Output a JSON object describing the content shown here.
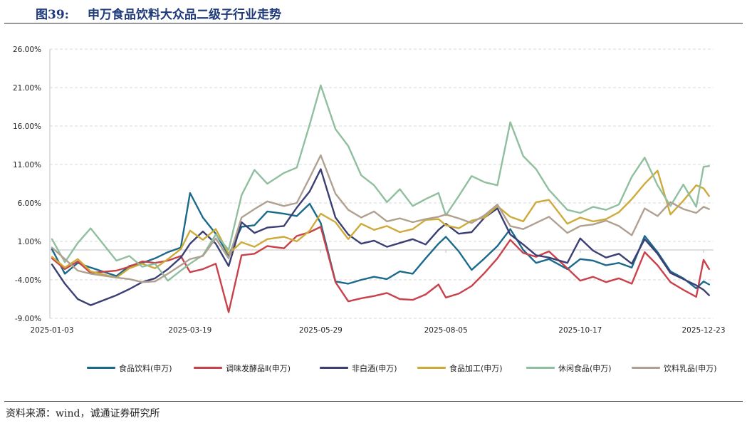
{
  "figure": {
    "number": "图39:",
    "title": "申万食品饮料大众品二级子行业走势"
  },
  "source": "资料来源：wind，诚通证券研究所",
  "chart_data": {
    "type": "line",
    "title": "",
    "xlabel": "",
    "ylabel": "",
    "ylim": [
      -9,
      26
    ],
    "yticks": [
      "-9.00%",
      "-4.00%",
      "1.00%",
      "6.00%",
      "11.00%",
      "16.00%",
      "21.00%",
      "26.00%"
    ],
    "yticks_values": [
      -9,
      -4,
      1,
      6,
      11,
      16,
      21,
      26
    ],
    "xticks": [
      "2025-01-03",
      "2025-03-19",
      "2025-05-29",
      "2025-08-05",
      "2025-10-17",
      "2025-12-23"
    ],
    "xticks_dates": [
      "2025-01-03",
      "2025-03-19",
      "2025-05-29",
      "2025-08-05",
      "2025-10-17",
      "2025-12-23"
    ],
    "grid": "horizontal dashed",
    "legend_position": "bottom",
    "x": [
      "2025-01-03",
      "2025-01-10",
      "2025-01-17",
      "2025-01-24",
      "2025-02-07",
      "2025-02-14",
      "2025-02-21",
      "2025-02-28",
      "2025-03-07",
      "2025-03-14",
      "2025-03-19",
      "2025-03-26",
      "2025-04-02",
      "2025-04-09",
      "2025-04-16",
      "2025-04-23",
      "2025-04-30",
      "2025-05-09",
      "2025-05-16",
      "2025-05-23",
      "2025-05-29",
      "2025-06-06",
      "2025-06-13",
      "2025-06-20",
      "2025-06-27",
      "2025-07-04",
      "2025-07-11",
      "2025-07-18",
      "2025-07-25",
      "2025-08-01",
      "2025-08-05",
      "2025-08-12",
      "2025-08-19",
      "2025-08-26",
      "2025-09-02",
      "2025-09-09",
      "2025-09-16",
      "2025-09-23",
      "2025-09-30",
      "2025-10-10",
      "2025-10-17",
      "2025-10-24",
      "2025-10-31",
      "2025-11-07",
      "2025-11-14",
      "2025-11-21",
      "2025-11-28",
      "2025-12-05",
      "2025-12-12",
      "2025-12-19",
      "2025-12-23",
      "2025-12-26"
    ],
    "series": [
      {
        "name": "食品饮料(申万)",
        "color": "#1b6a8c",
        "values": [
          0,
          -3.2,
          -1.8,
          -2.4,
          -3.5,
          -2.2,
          -1.8,
          -1.2,
          -0.4,
          0.2,
          7.3,
          4.1,
          2.0,
          -0.8,
          2.9,
          3.1,
          4.9,
          4.6,
          4.3,
          5.9,
          3.4,
          -4.2,
          -4.5,
          -4.0,
          -3.6,
          -3.9,
          -2.9,
          -3.2,
          -1.2,
          0.7,
          1.6,
          -0.3,
          -2.7,
          -1.2,
          0.4,
          2.6,
          -0.1,
          -1.8,
          -1.3,
          -2.6,
          -1.3,
          -1.5,
          -2.1,
          -1.8,
          -2.4,
          1.7,
          -0.4,
          -2.9,
          -3.8,
          -5.1,
          -4.2,
          -4.6
        ]
      },
      {
        "name": "调味发酵品Ⅱ(申万)",
        "color": "#c9414a",
        "values": [
          -1.2,
          -2.6,
          -1.6,
          -3.1,
          -2.8,
          -2.3,
          -1.6,
          -1.8,
          -1.5,
          -0.9,
          -3.0,
          -2.6,
          -1.9,
          -8.2,
          -0.8,
          -0.6,
          0.4,
          0.1,
          1.7,
          2.2,
          2.9,
          -4.3,
          -6.8,
          -6.4,
          -6.1,
          -5.7,
          -6.5,
          -6.6,
          -5.9,
          -4.6,
          -6.3,
          -5.8,
          -4.8,
          -3.1,
          -1.2,
          1.2,
          -0.5,
          -1.0,
          -0.3,
          -2.5,
          -4.1,
          -3.6,
          -4.3,
          -3.8,
          -4.5,
          -0.4,
          -2.1,
          -4.3,
          -5.3,
          -6.2,
          -1.4,
          -2.6
        ]
      },
      {
        "name": "非白酒(申万)",
        "color": "#3b3f73",
        "values": [
          -2.0,
          -4.5,
          -6.5,
          -7.3,
          -6.0,
          -5.2,
          -4.3,
          -3.8,
          -2.6,
          -1.1,
          0.7,
          2.3,
          0.7,
          -2.2,
          3.5,
          2.1,
          2.8,
          3.0,
          5.4,
          7.5,
          10.4,
          4.1,
          1.9,
          0.7,
          1.1,
          0.3,
          0.8,
          1.3,
          0.6,
          2.5,
          3.3,
          2.0,
          2.2,
          4.1,
          5.3,
          1.9,
          0.6,
          -0.8,
          -1.1,
          -1.8,
          1.4,
          -0.2,
          -1.1,
          -0.6,
          -1.9,
          1.3,
          -0.6,
          -3.1,
          -3.9,
          -4.7,
          -5.3,
          -6.0
        ]
      },
      {
        "name": "食品加工(申万)",
        "color": "#ceaa39",
        "values": [
          -1.0,
          -2.4,
          -1.3,
          -2.9,
          -3.7,
          -2.5,
          -1.9,
          -2.5,
          -1.3,
          0.0,
          2.4,
          1.2,
          2.6,
          -0.6,
          0.9,
          0.3,
          1.3,
          1.6,
          1.0,
          2.4,
          4.6,
          3.5,
          1.3,
          3.3,
          2.5,
          3.0,
          2.2,
          2.6,
          3.8,
          3.9,
          3.1,
          2.7,
          3.7,
          4.1,
          5.6,
          4.2,
          3.6,
          6.1,
          6.4,
          3.3,
          4.1,
          3.6,
          3.9,
          4.8,
          6.5,
          8.5,
          10.2,
          4.5,
          6.3,
          8.3,
          7.9,
          6.9
        ]
      },
      {
        "name": "休闲食品(申万)",
        "color": "#8fbf9e",
        "values": [
          1.3,
          -1.7,
          0.8,
          2.7,
          -1.5,
          -0.9,
          -2.3,
          -1.9,
          -4.1,
          -2.8,
          -1.9,
          -0.8,
          1.9,
          -0.1,
          7.0,
          10.3,
          8.5,
          9.9,
          10.6,
          16.2,
          21.3,
          15.6,
          13.4,
          9.6,
          8.3,
          6.1,
          7.8,
          5.6,
          6.5,
          7.3,
          4.4,
          6.9,
          9.5,
          8.7,
          8.3,
          16.5,
          12.1,
          10.4,
          7.7,
          5.1,
          4.7,
          5.5,
          5.1,
          5.8,
          9.4,
          11.9,
          8.3,
          5.6,
          8.4,
          5.5,
          10.7,
          10.8
        ]
      },
      {
        "name": "饮料乳品(申万)",
        "color": "#b0a090",
        "values": [
          0.2,
          -1.3,
          -2.8,
          -3.2,
          -3.7,
          -3.9,
          -4.3,
          -4.2,
          -3.2,
          -2.1,
          -1.3,
          -0.9,
          1.4,
          -1.2,
          4.1,
          5.2,
          6.2,
          5.6,
          6.0,
          9.3,
          12.2,
          7.2,
          5.1,
          4.1,
          4.9,
          3.6,
          4.0,
          3.5,
          3.9,
          4.2,
          4.5,
          4.0,
          3.4,
          4.4,
          5.8,
          3.0,
          2.6,
          3.4,
          4.2,
          2.1,
          3.0,
          3.2,
          3.7,
          3.0,
          1.8,
          5.3,
          4.3,
          6.1,
          5.2,
          4.7,
          5.5,
          5.2
        ]
      }
    ]
  }
}
